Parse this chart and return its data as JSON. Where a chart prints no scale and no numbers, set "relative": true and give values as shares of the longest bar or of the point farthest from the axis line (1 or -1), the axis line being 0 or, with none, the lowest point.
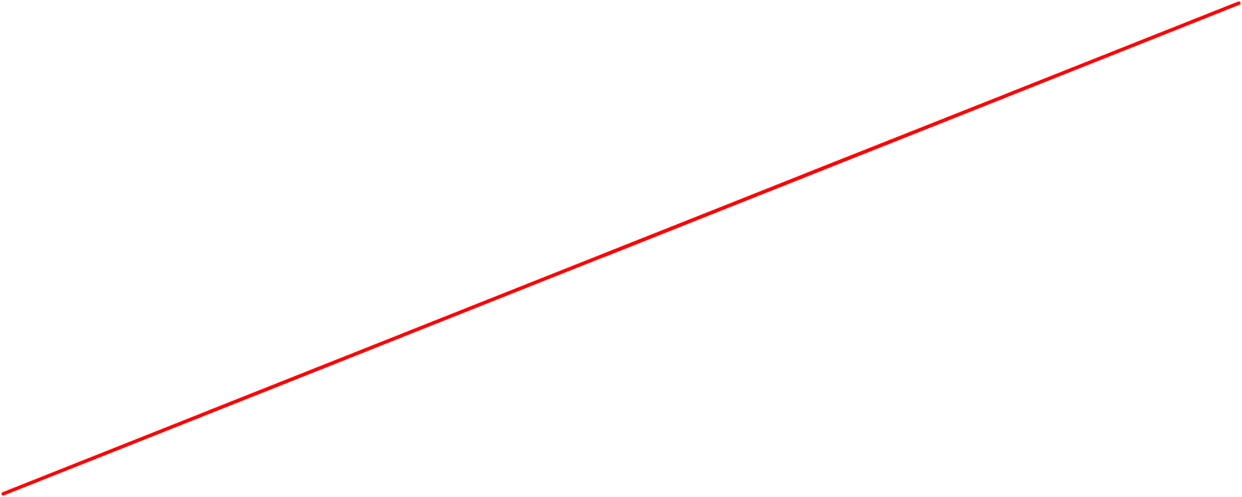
{
  "chart_data": {
    "type": "line",
    "relative": true,
    "categories": [
      null,
      null
    ],
    "values": [
      0,
      1
    ],
    "color": "#ff0000"
  }
}
